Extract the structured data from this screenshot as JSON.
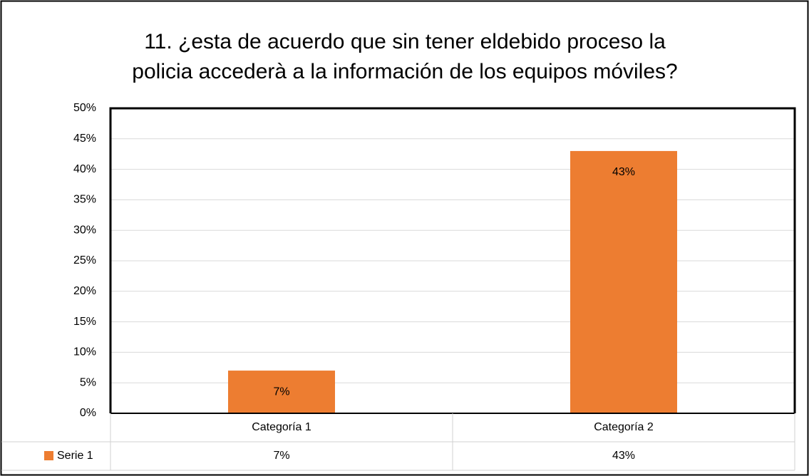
{
  "chart_data": {
    "type": "bar",
    "title": [
      "11. ¿esta de acuerdo que sin tener eldebido proceso la",
      "policia accederà a la información de los equipos móviles?"
    ],
    "categories": [
      "Categoría 1",
      "Categoría 2"
    ],
    "series": [
      {
        "name": "Serie 1",
        "color": "#ed7d31",
        "values": [
          7,
          43
        ],
        "value_labels": [
          "7%",
          "43%"
        ]
      }
    ],
    "ylim": [
      0,
      50
    ],
    "yticks": [
      {
        "value": 0,
        "label": "0%"
      },
      {
        "value": 5,
        "label": "5%"
      },
      {
        "value": 10,
        "label": "10%"
      },
      {
        "value": 15,
        "label": "15%"
      },
      {
        "value": 20,
        "label": "20%"
      },
      {
        "value": 25,
        "label": "25%"
      },
      {
        "value": 30,
        "label": "30%"
      },
      {
        "value": 35,
        "label": "35%"
      },
      {
        "value": 40,
        "label": "40%"
      },
      {
        "value": 45,
        "label": "45%"
      },
      {
        "value": 50,
        "label": "50%"
      }
    ],
    "grid": true,
    "data_table": true
  }
}
